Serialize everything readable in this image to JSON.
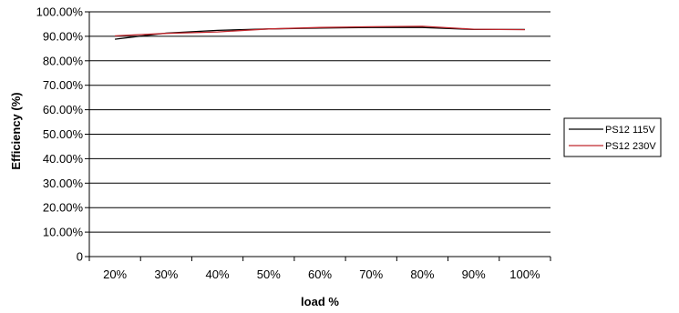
{
  "chart_data": {
    "type": "line",
    "title": "",
    "xlabel": "load %",
    "ylabel": "Efficiency (%)",
    "categories": [
      "20%",
      "30%",
      "40%",
      "50%",
      "60%",
      "70%",
      "80%",
      "90%",
      "100%"
    ],
    "y_ticks": [
      "0",
      "10.00%",
      "20.00%",
      "30.00%",
      "40.00%",
      "50.00%",
      "60.00%",
      "70.00%",
      "80.00%",
      "90.00%",
      "100.00%"
    ],
    "ylim": [
      0,
      100
    ],
    "grid": true,
    "legend_position": "right",
    "series": [
      {
        "name": "PS12  115V",
        "color": "#000000",
        "values": [
          88.8,
          91.3,
          92.4,
          93.0,
          93.4,
          93.6,
          93.6,
          92.8,
          92.8
        ]
      },
      {
        "name": "PS12  230V",
        "color": "#c0272d",
        "values": [
          90.2,
          91.2,
          91.8,
          93.0,
          93.6,
          93.9,
          94.1,
          92.9,
          92.7
        ]
      }
    ]
  }
}
